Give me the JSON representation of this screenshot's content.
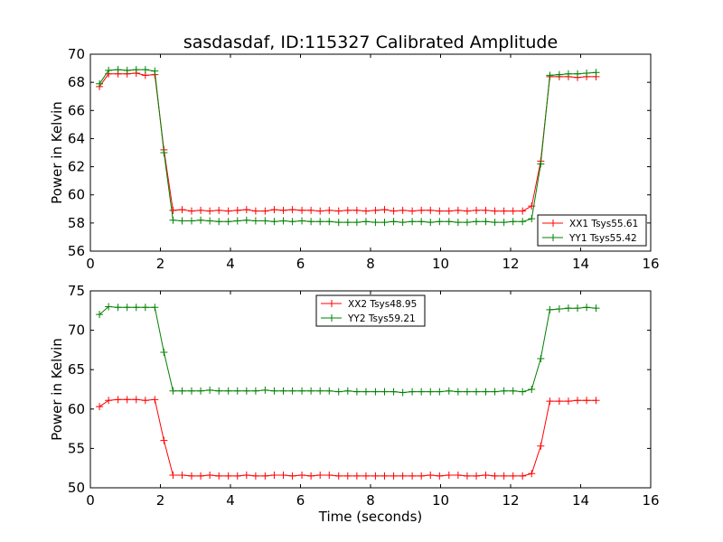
{
  "figure": {
    "title": "sasdasdaf, ID:115327 Calibrated Amplitude"
  },
  "colors": {
    "xx": "#ff0000",
    "yy": "#008000",
    "axes": "#000000",
    "background": "#ffffff"
  },
  "chart_data": [
    {
      "type": "line",
      "title": "sasdasdaf, ID:115327 Calibrated Amplitude",
      "xlabel": "",
      "ylabel": "Power in Kelvin",
      "xlim": [
        0,
        16
      ],
      "ylim": [
        56,
        70
      ],
      "xticks": [
        "0",
        "2",
        "4",
        "6",
        "8",
        "10",
        "12",
        "14",
        "16"
      ],
      "yticks": [
        "56",
        "58",
        "60",
        "62",
        "64",
        "66",
        "68",
        "70"
      ],
      "grid": false,
      "legend": "lower-right",
      "x": [
        0.26,
        0.52,
        0.79,
        1.05,
        1.31,
        1.57,
        1.84,
        2.1,
        2.36,
        2.62,
        2.89,
        3.15,
        3.41,
        3.67,
        3.94,
        4.2,
        4.46,
        4.72,
        4.99,
        5.25,
        5.51,
        5.77,
        6.04,
        6.3,
        6.56,
        6.82,
        7.09,
        7.35,
        7.61,
        7.87,
        8.14,
        8.4,
        8.66,
        8.92,
        9.19,
        9.45,
        9.71,
        9.97,
        10.24,
        10.5,
        10.76,
        11.02,
        11.29,
        11.55,
        11.81,
        12.07,
        12.34,
        12.6,
        12.86,
        13.12,
        13.39,
        13.65,
        13.91,
        14.17,
        14.44
      ],
      "series": [
        {
          "name": "XX1 Tsys55.61",
          "color": "#ff0000",
          "values": [
            67.7,
            68.6,
            68.6,
            68.6,
            68.65,
            68.5,
            68.55,
            63.2,
            58.9,
            58.95,
            58.85,
            58.9,
            58.85,
            58.9,
            58.85,
            58.9,
            58.95,
            58.85,
            58.85,
            58.95,
            58.9,
            58.95,
            58.9,
            58.9,
            58.85,
            58.9,
            58.85,
            58.9,
            58.9,
            58.85,
            58.9,
            58.95,
            58.85,
            58.9,
            58.85,
            58.9,
            58.9,
            58.85,
            58.85,
            58.9,
            58.85,
            58.9,
            58.9,
            58.85,
            58.85,
            58.85,
            58.85,
            59.2,
            62.4,
            68.4,
            68.4,
            68.4,
            68.35,
            68.4,
            68.4
          ]
        },
        {
          "name": "YY1 Tsys55.42",
          "color": "#008000",
          "values": [
            67.9,
            68.85,
            68.9,
            68.85,
            68.9,
            68.9,
            68.8,
            63.0,
            58.2,
            58.15,
            58.15,
            58.2,
            58.15,
            58.1,
            58.1,
            58.15,
            58.2,
            58.15,
            58.15,
            58.1,
            58.15,
            58.1,
            58.15,
            58.1,
            58.1,
            58.1,
            58.05,
            58.05,
            58.05,
            58.1,
            58.05,
            58.05,
            58.1,
            58.05,
            58.1,
            58.1,
            58.05,
            58.1,
            58.1,
            58.05,
            58.05,
            58.1,
            58.1,
            58.05,
            58.05,
            58.1,
            58.1,
            58.3,
            62.2,
            68.5,
            68.55,
            68.6,
            68.6,
            68.65,
            68.7
          ]
        }
      ]
    },
    {
      "type": "line",
      "title": "",
      "xlabel": "Time (seconds)",
      "ylabel": "Power in Kelvin",
      "xlim": [
        0,
        16
      ],
      "ylim": [
        50,
        75
      ],
      "xticks": [
        "0",
        "2",
        "4",
        "6",
        "8",
        "10",
        "12",
        "14",
        "16"
      ],
      "yticks": [
        "50",
        "55",
        "60",
        "65",
        "70",
        "75"
      ],
      "grid": false,
      "legend": "top-center",
      "x": [
        0.26,
        0.52,
        0.79,
        1.05,
        1.31,
        1.57,
        1.84,
        2.1,
        2.36,
        2.62,
        2.89,
        3.15,
        3.41,
        3.67,
        3.94,
        4.2,
        4.46,
        4.72,
        4.99,
        5.25,
        5.51,
        5.77,
        6.04,
        6.3,
        6.56,
        6.82,
        7.09,
        7.35,
        7.61,
        7.87,
        8.14,
        8.4,
        8.66,
        8.92,
        9.19,
        9.45,
        9.71,
        9.97,
        10.24,
        10.5,
        10.76,
        11.02,
        11.29,
        11.55,
        11.81,
        12.07,
        12.34,
        12.6,
        12.86,
        13.12,
        13.39,
        13.65,
        13.91,
        14.17,
        14.44
      ],
      "series": [
        {
          "name": "XX2 Tsys48.95",
          "color": "#ff0000",
          "values": [
            60.3,
            61.1,
            61.2,
            61.2,
            61.2,
            61.1,
            61.2,
            56.0,
            51.6,
            51.6,
            51.5,
            51.5,
            51.6,
            51.5,
            51.5,
            51.5,
            51.6,
            51.5,
            51.5,
            51.6,
            51.6,
            51.5,
            51.6,
            51.5,
            51.6,
            51.6,
            51.5,
            51.5,
            51.5,
            51.5,
            51.5,
            51.5,
            51.5,
            51.5,
            51.5,
            51.5,
            51.6,
            51.5,
            51.6,
            51.6,
            51.5,
            51.5,
            51.6,
            51.5,
            51.5,
            51.5,
            51.5,
            51.8,
            55.3,
            61.0,
            61.0,
            61.0,
            61.1,
            61.1,
            61.1
          ]
        },
        {
          "name": "YY2 Tsys59.21",
          "color": "#008000",
          "values": [
            72.0,
            73.0,
            72.9,
            72.9,
            72.9,
            72.9,
            72.9,
            67.2,
            62.3,
            62.3,
            62.3,
            62.3,
            62.4,
            62.3,
            62.3,
            62.3,
            62.3,
            62.3,
            62.4,
            62.3,
            62.3,
            62.3,
            62.3,
            62.3,
            62.3,
            62.3,
            62.2,
            62.3,
            62.2,
            62.2,
            62.2,
            62.2,
            62.2,
            62.1,
            62.2,
            62.2,
            62.2,
            62.2,
            62.3,
            62.2,
            62.2,
            62.2,
            62.2,
            62.2,
            62.3,
            62.3,
            62.2,
            62.5,
            66.4,
            72.6,
            72.7,
            72.8,
            72.8,
            72.9,
            72.8
          ]
        }
      ]
    }
  ]
}
